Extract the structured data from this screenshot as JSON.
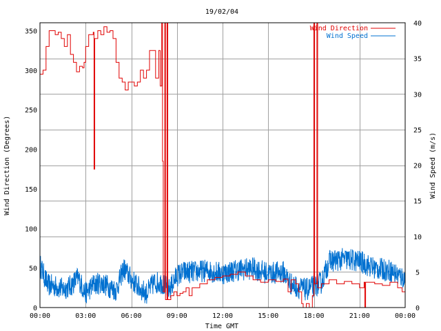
{
  "chart_data": {
    "type": "line",
    "title": "19/02/04",
    "xlabel": "Time GMT",
    "ylabel_left": "Wind Direction (Degrees)",
    "ylabel_right": "Wind Speed (m/s)",
    "x_range_hours": [
      0,
      24
    ],
    "x_ticks": [
      {
        "h": 0,
        "label": "00:00"
      },
      {
        "h": 3,
        "label": "03:00"
      },
      {
        "h": 6,
        "label": "06:00"
      },
      {
        "h": 9,
        "label": "09:00"
      },
      {
        "h": 12,
        "label": "12:00"
      },
      {
        "h": 15,
        "label": "15:00"
      },
      {
        "h": 18,
        "label": "18:00"
      },
      {
        "h": 21,
        "label": "21:00"
      },
      {
        "h": 24,
        "label": "00:00"
      }
    ],
    "y_left_range": [
      0,
      360
    ],
    "y_left_ticks": [
      0,
      50,
      100,
      150,
      200,
      250,
      300,
      350
    ],
    "y_right_range": [
      0,
      40
    ],
    "y_right_ticks": [
      0,
      5,
      10,
      15,
      20,
      25,
      30,
      35,
      40
    ],
    "grid": true,
    "legend_position": "top-right",
    "series": [
      {
        "name": "Wind Direction",
        "axis": "left",
        "color": "#e00000",
        "step": true,
        "points": [
          [
            0.0,
            295
          ],
          [
            0.2,
            300
          ],
          [
            0.4,
            330
          ],
          [
            0.6,
            350
          ],
          [
            0.8,
            350
          ],
          [
            1.0,
            345
          ],
          [
            1.2,
            348
          ],
          [
            1.4,
            340
          ],
          [
            1.6,
            330
          ],
          [
            1.8,
            345
          ],
          [
            2.0,
            320
          ],
          [
            2.2,
            310
          ],
          [
            2.4,
            298
          ],
          [
            2.6,
            305
          ],
          [
            2.8,
            303
          ],
          [
            2.9,
            310
          ],
          [
            3.0,
            330
          ],
          [
            3.2,
            345
          ],
          [
            3.3,
            345
          ],
          [
            3.5,
            348
          ],
          [
            3.55,
            175
          ],
          [
            3.6,
            340
          ],
          [
            3.8,
            350
          ],
          [
            4.0,
            345
          ],
          [
            4.2,
            355
          ],
          [
            4.4,
            348
          ],
          [
            4.6,
            350
          ],
          [
            4.8,
            340
          ],
          [
            5.0,
            310
          ],
          [
            5.2,
            290
          ],
          [
            5.4,
            285
          ],
          [
            5.6,
            275
          ],
          [
            5.8,
            285
          ],
          [
            6.0,
            285
          ],
          [
            6.2,
            280
          ],
          [
            6.4,
            285
          ],
          [
            6.6,
            300
          ],
          [
            6.8,
            290
          ],
          [
            7.0,
            300
          ],
          [
            7.2,
            325
          ],
          [
            7.4,
            325
          ],
          [
            7.6,
            290
          ],
          [
            7.8,
            325
          ],
          [
            7.9,
            280
          ],
          [
            8.0,
            360
          ],
          [
            8.05,
            185
          ],
          [
            8.1,
            20
          ],
          [
            8.2,
            360
          ],
          [
            8.25,
            10
          ],
          [
            8.35,
            360
          ],
          [
            8.4,
            10
          ],
          [
            8.6,
            15
          ],
          [
            8.8,
            20
          ],
          [
            9.0,
            15
          ],
          [
            9.2,
            18
          ],
          [
            9.4,
            20
          ],
          [
            9.6,
            25
          ],
          [
            9.8,
            15
          ],
          [
            10.0,
            25
          ],
          [
            10.5,
            30
          ],
          [
            11.0,
            35
          ],
          [
            11.5,
            38
          ],
          [
            12.0,
            40
          ],
          [
            12.5,
            42
          ],
          [
            13.0,
            45
          ],
          [
            13.5,
            40
          ],
          [
            14.0,
            35
          ],
          [
            14.5,
            32
          ],
          [
            15.0,
            35
          ],
          [
            15.5,
            33
          ],
          [
            16.0,
            36
          ],
          [
            16.3,
            20
          ],
          [
            16.5,
            35
          ],
          [
            16.8,
            30
          ],
          [
            17.0,
            20
          ],
          [
            17.2,
            5
          ],
          [
            17.3,
            0
          ],
          [
            17.5,
            5
          ],
          [
            17.7,
            0
          ],
          [
            17.9,
            15
          ],
          [
            18.0,
            360
          ],
          [
            18.05,
            30
          ],
          [
            18.2,
            360
          ],
          [
            18.25,
            25
          ],
          [
            18.5,
            30
          ],
          [
            19.0,
            35
          ],
          [
            19.5,
            30
          ],
          [
            20.0,
            33
          ],
          [
            20.5,
            30
          ],
          [
            21.0,
            25
          ],
          [
            21.3,
            32
          ],
          [
            21.35,
            0
          ],
          [
            21.4,
            32
          ],
          [
            22.0,
            30
          ],
          [
            22.5,
            28
          ],
          [
            23.0,
            32
          ],
          [
            23.5,
            25
          ],
          [
            23.8,
            20
          ],
          [
            24.0,
            18
          ]
        ]
      },
      {
        "name": "Wind Speed",
        "axis": "right",
        "color": "#0070d0",
        "step": false,
        "profile": [
          [
            0.0,
            6.0
          ],
          [
            0.5,
            3.2
          ],
          [
            1.0,
            3.0
          ],
          [
            1.5,
            2.6
          ],
          [
            2.0,
            3.0
          ],
          [
            2.5,
            4.2
          ],
          [
            3.0,
            2.0
          ],
          [
            3.5,
            3.2
          ],
          [
            4.0,
            3.5
          ],
          [
            4.5,
            3.0
          ],
          [
            5.0,
            2.4
          ],
          [
            5.5,
            5.5
          ],
          [
            6.0,
            4.0
          ],
          [
            6.5,
            2.8
          ],
          [
            7.0,
            2.0
          ],
          [
            7.5,
            3.5
          ],
          [
            8.0,
            3.5
          ],
          [
            8.5,
            2.5
          ],
          [
            9.0,
            4.5
          ],
          [
            9.5,
            5.0
          ],
          [
            10.0,
            5.0
          ],
          [
            11.0,
            5.2
          ],
          [
            12.0,
            4.8
          ],
          [
            13.0,
            5.3
          ],
          [
            14.0,
            5.5
          ],
          [
            15.0,
            4.8
          ],
          [
            16.0,
            5.0
          ],
          [
            16.5,
            3.3
          ],
          [
            17.0,
            2.8
          ],
          [
            17.5,
            2.5
          ],
          [
            18.0,
            3.0
          ],
          [
            18.5,
            3.5
          ],
          [
            19.0,
            6.5
          ],
          [
            20.0,
            6.8
          ],
          [
            21.0,
            6.5
          ],
          [
            22.0,
            5.5
          ],
          [
            23.0,
            5.2
          ],
          [
            24.0,
            4.0
          ]
        ],
        "noise_amplitude": 1.6
      }
    ]
  }
}
